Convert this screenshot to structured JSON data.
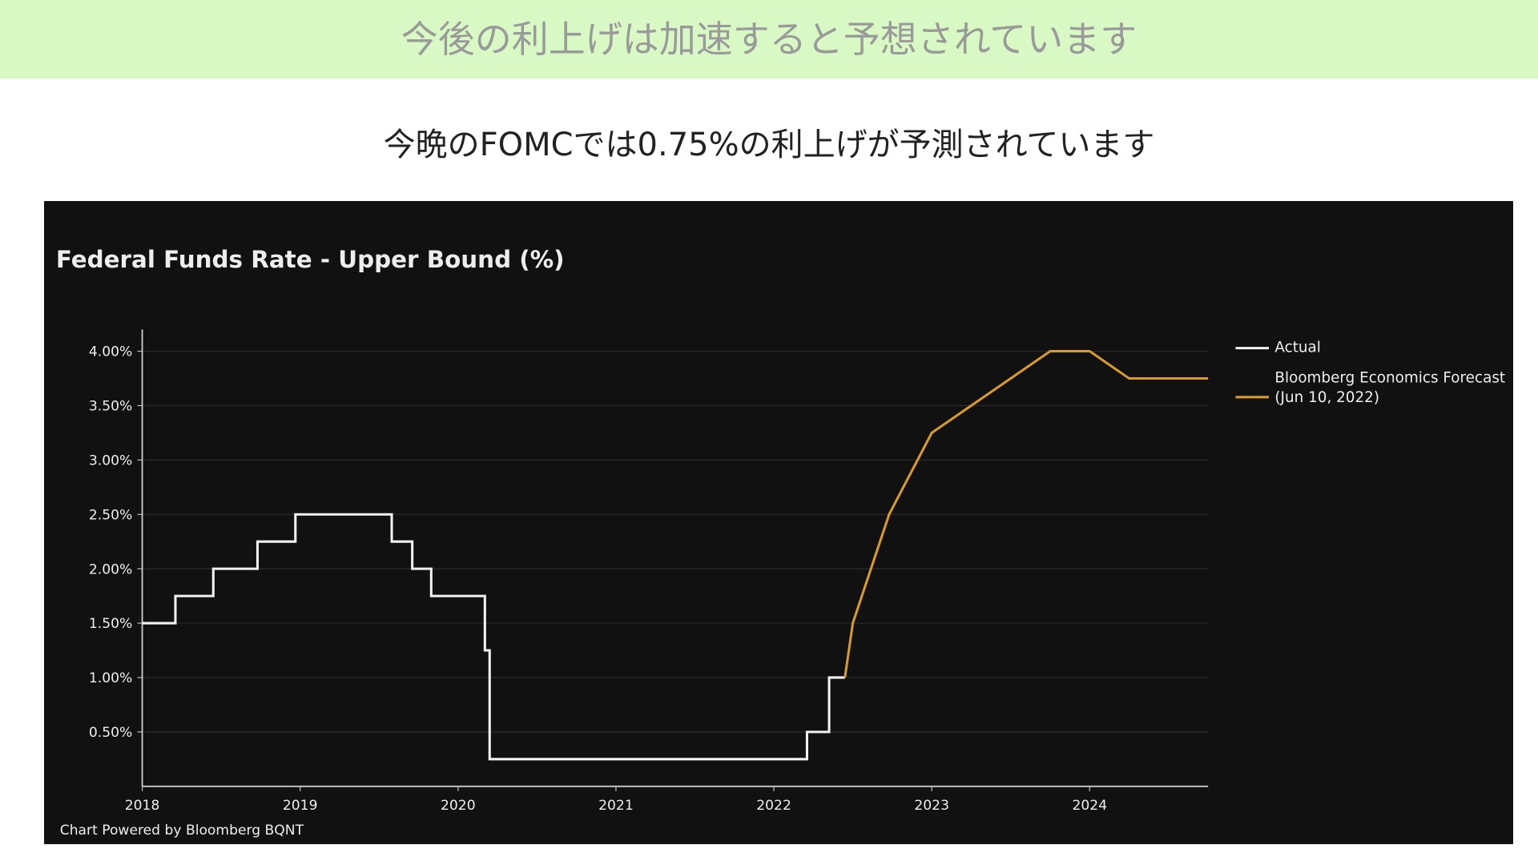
{
  "header": {
    "title": "今後の利上げは加速すると予想されています",
    "subtitle": "今晩のFOMCでは0.75%の利上げが予測されています"
  },
  "chart_data": {
    "type": "line",
    "title": "Federal Funds Rate - Upper Bound (%)",
    "footnote": "Chart Powered by Bloomberg BQNT",
    "xlim": [
      2018,
      2024.75
    ],
    "xticks": [
      2018,
      2019,
      2020,
      2021,
      2022,
      2023,
      2024
    ],
    "ylim": [
      0,
      4.2
    ],
    "yticks": [
      {
        "value": 0.5,
        "label": "0.50%"
      },
      {
        "value": 1,
        "label": "1.00%"
      },
      {
        "value": 1.5,
        "label": "1.50%"
      },
      {
        "value": 2,
        "label": "2.00%"
      },
      {
        "value": 2.5,
        "label": "2.50%"
      },
      {
        "value": 3,
        "label": "3.00%"
      },
      {
        "value": 3.5,
        "label": "3.50%"
      },
      {
        "value": 4,
        "label": "4.00%"
      }
    ],
    "grid": true,
    "legend": "right",
    "series": [
      {
        "name": "Actual",
        "color": "#f2f2f2",
        "x": [
          2018,
          2018.21,
          2018.21,
          2018.45,
          2018.45,
          2018.73,
          2018.73,
          2018.97,
          2018.97,
          2019.58,
          2019.58,
          2019.71,
          2019.71,
          2019.83,
          2019.83,
          2020.17,
          2020.17,
          2020.2,
          2020.2,
          2022.21,
          2022.21,
          2022.35,
          2022.35,
          2022.45
        ],
        "values": [
          1.5,
          1.5,
          1.75,
          1.75,
          2,
          2,
          2.25,
          2.25,
          2.5,
          2.5,
          2.25,
          2.25,
          2,
          2,
          1.75,
          1.75,
          1.25,
          1.25,
          0.25,
          0.25,
          0.5,
          0.5,
          1,
          1
        ]
      },
      {
        "name": "Bloomberg Economics Forecast (Jun 10, 2022)",
        "color": "#d69a2d",
        "x": [
          2022.45,
          2022.5,
          2022.73,
          2023,
          2023.75,
          2024,
          2024.25,
          2024.75
        ],
        "values": [
          1,
          1.5,
          2.5,
          3.25,
          4,
          4,
          3.75,
          3.75
        ]
      }
    ]
  }
}
